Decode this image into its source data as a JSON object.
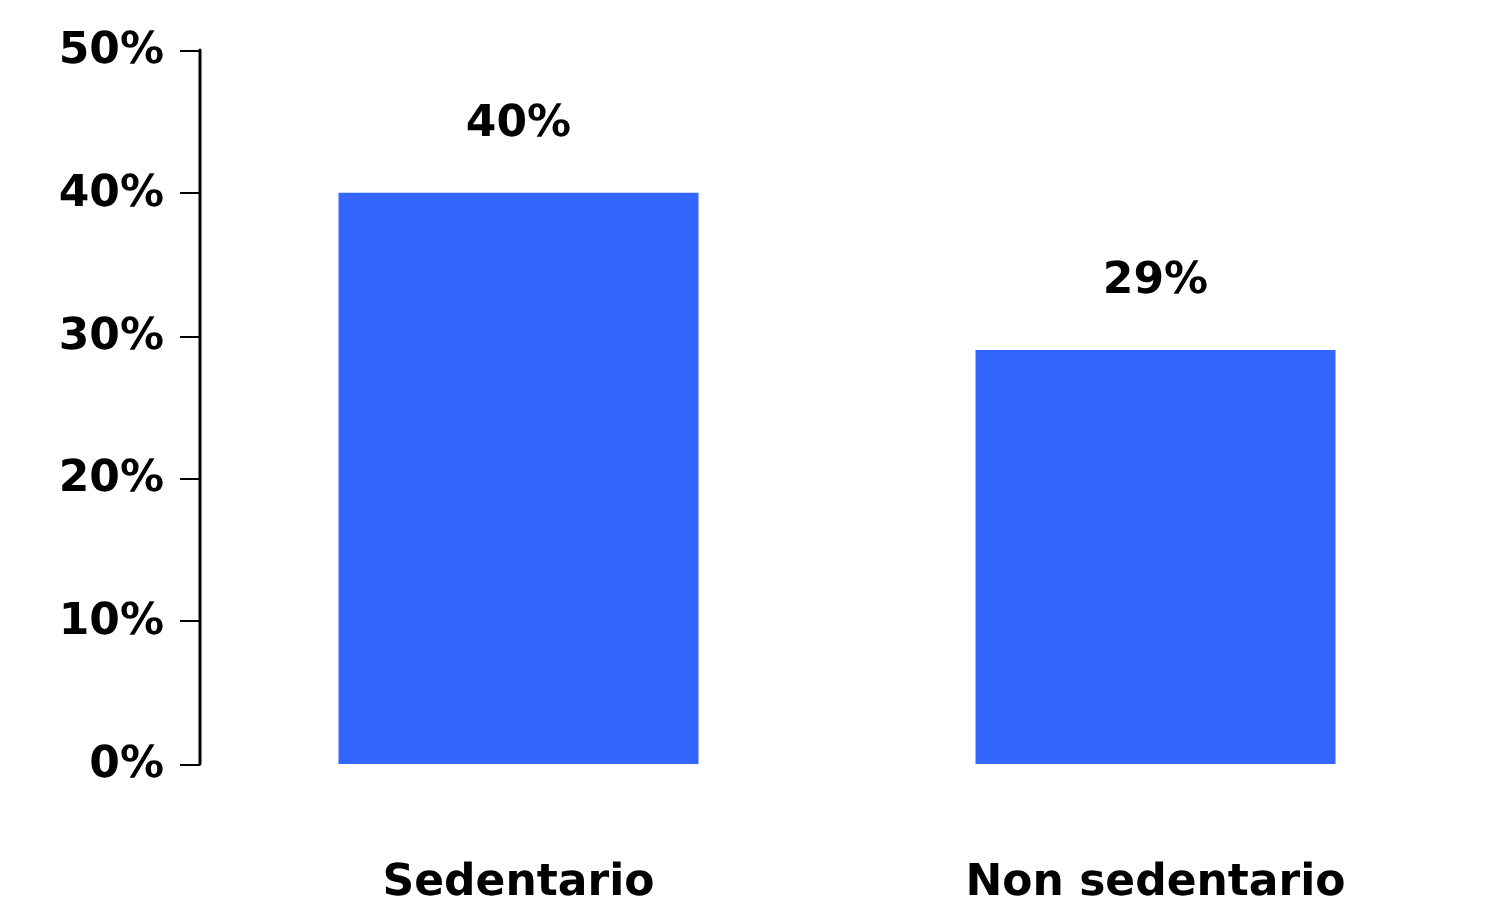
{
  "chart_data": {
    "type": "bar",
    "categories": [
      "Sedentario",
      "Non sedentario"
    ],
    "values": [
      40,
      29
    ],
    "color": "#3366ff",
    "value_labels": [
      "40%",
      "29%"
    ],
    "ylim": [
      0,
      50
    ],
    "yticks": [
      {
        "value": 0,
        "label": "0%"
      },
      {
        "value": 10,
        "label": "10%"
      },
      {
        "value": 20,
        "label": "20%"
      },
      {
        "value": 30,
        "label": "30%"
      },
      {
        "value": 40,
        "label": "40%"
      },
      {
        "value": 50,
        "label": "50%"
      }
    ],
    "grid": false
  }
}
